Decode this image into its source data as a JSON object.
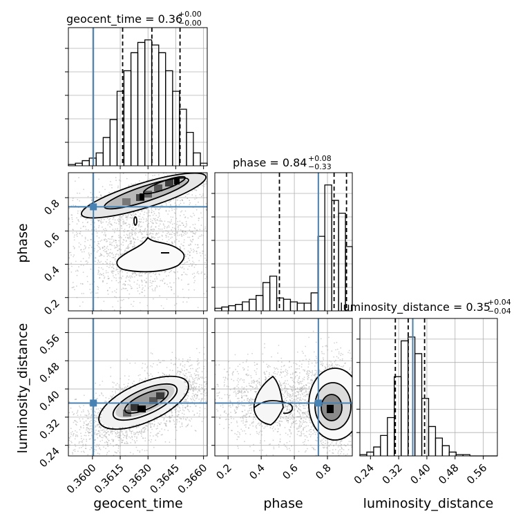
{
  "chart_data": {
    "type": "corner",
    "parameters": [
      "geocent_time",
      "phase",
      "luminosity_distance"
    ],
    "truths": {
      "geocent_time": 0.36005,
      "phase": 0.745,
      "luminosity_distance": 0.36
    },
    "colors": {
      "truth": "#4682b4",
      "contour": "#000000",
      "hist": "#000000",
      "grid": "#b0b0b0",
      "scatter": "#9a9a9a"
    },
    "grid": true,
    "titles": [
      {
        "param": "geocent_time",
        "text": "geocent_time = 0.36",
        "sup": "+0.00",
        "sub": "−0.00"
      },
      {
        "param": "phase",
        "text": "phase = 0.84",
        "sup": "+0.08",
        "sub": "−0.33"
      },
      {
        "param": "luminosity_distance",
        "text": "luminosity_distance = 0.35",
        "sup": "+0.04",
        "sub": "−0.04"
      }
    ],
    "axis_labels": {
      "x": [
        "geocent_time",
        "phase",
        "luminosity_distance"
      ],
      "y": [
        "phase",
        "luminosity_distance"
      ]
    },
    "ticks": {
      "geocent_time": {
        "values": [
          0.36,
          0.3615,
          0.363,
          0.3645,
          0.366
        ],
        "labels": [
          "0.3600",
          "0.3615",
          "0.3630",
          "0.3645",
          "0.3660"
        ]
      },
      "phase_x": {
        "values": [
          0.2,
          0.4,
          0.6,
          0.8
        ],
        "labels": [
          "0.2",
          "0.4",
          "0.6",
          "0.8"
        ]
      },
      "phase_y": {
        "values": [
          0.2,
          0.4,
          0.6,
          0.8
        ],
        "labels": [
          "0.2",
          "0.4",
          "0.6",
          "0.8"
        ]
      },
      "luminosity_distance": {
        "values": [
          0.24,
          0.32,
          0.4,
          0.48,
          0.56
        ],
        "labels": [
          "0.24",
          "0.32",
          "0.40",
          "0.48",
          "0.56"
        ]
      }
    },
    "ranges": {
      "geocent_time": [
        0.3587,
        0.3662
      ],
      "phase": [
        0.12,
        0.95
      ],
      "luminosity_distance": [
        0.21,
        0.6
      ]
    },
    "hist_geocent_time": {
      "edges": [
        0.3587,
        0.35908,
        0.35945,
        0.35983,
        0.3602,
        0.36058,
        0.36095,
        0.36133,
        0.3617,
        0.36208,
        0.36245,
        0.36283,
        0.3632,
        0.36358,
        0.36395,
        0.36433,
        0.3647,
        0.36508,
        0.36545,
        0.36583,
        0.3662
      ],
      "counts": [
        0.01,
        0.02,
        0.04,
        0.06,
        0.1,
        0.22,
        0.36,
        0.58,
        0.74,
        0.88,
        0.96,
        0.98,
        0.94,
        0.88,
        0.74,
        0.58,
        0.44,
        0.26,
        0.1,
        0.02
      ],
      "quantiles": [
        0.36163,
        0.36321,
        0.36473
      ]
    },
    "hist_phase": {
      "edges": [
        0.12,
        0.1615,
        0.203,
        0.2445,
        0.286,
        0.3275,
        0.369,
        0.4105,
        0.452,
        0.4935,
        0.535,
        0.5765,
        0.618,
        0.6595,
        0.701,
        0.7425,
        0.784,
        0.8255,
        0.867,
        0.9085,
        0.95
      ],
      "counts": [
        0.02,
        0.03,
        0.04,
        0.05,
        0.07,
        0.09,
        0.12,
        0.22,
        0.27,
        0.1,
        0.09,
        0.07,
        0.06,
        0.06,
        0.14,
        0.58,
        0.98,
        0.86,
        0.76,
        0.5
      ],
      "quantiles": [
        0.51,
        0.84,
        0.915
      ]
    },
    "hist_luminosity_distance": {
      "edges": [
        0.21,
        0.2295,
        0.249,
        0.2685,
        0.288,
        0.3075,
        0.327,
        0.3465,
        0.366,
        0.3855,
        0.405,
        0.4245,
        0.444,
        0.4635,
        0.483,
        0.5025,
        0.522,
        0.5415,
        0.561,
        0.5805,
        0.6
      ],
      "counts": [
        0.01,
        0.03,
        0.07,
        0.16,
        0.3,
        0.62,
        0.9,
        0.93,
        0.8,
        0.45,
        0.23,
        0.14,
        0.08,
        0.03,
        0.01,
        0.01,
        0.0,
        0.0,
        0.0,
        0.0
      ],
      "quantiles": [
        0.3105,
        0.347,
        0.3935
      ]
    }
  }
}
